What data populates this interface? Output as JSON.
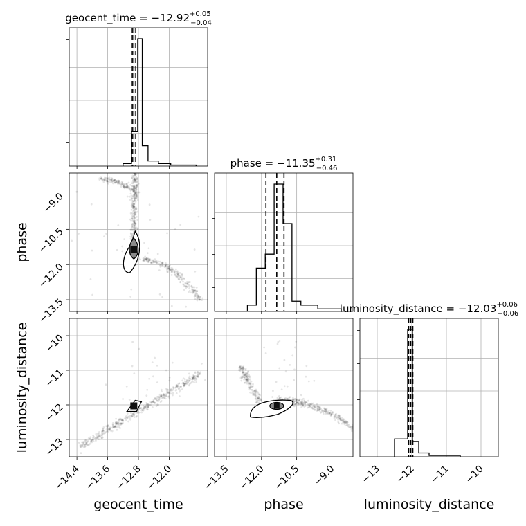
{
  "chart_data": {
    "type": "corner",
    "parameters": [
      "geocent_time",
      "phase",
      "luminosity_distance"
    ],
    "titles": [
      {
        "param": "geocent_time",
        "median": "−12.92",
        "plus": "+0.05",
        "minus": "−0.04"
      },
      {
        "param": "phase",
        "median": "−11.35",
        "plus": "+0.31",
        "minus": "−0.46"
      },
      {
        "param": "luminosity_distance",
        "median": "−12.03",
        "plus": "+0.06",
        "minus": "−0.06"
      }
    ],
    "axes": {
      "geocent_time": {
        "range": [
          -14.6,
          -11.0
        ],
        "ticks": [
          -14.4,
          -13.6,
          -12.8,
          -12.0
        ],
        "tick_labels": [
          "−14.4",
          "−13.6",
          "−12.8",
          "−12.0"
        ]
      },
      "phase": {
        "range": [
          -14.0,
          -8.1
        ],
        "ticks": [
          -13.5,
          -12.0,
          -10.5,
          -9.0
        ],
        "tick_labels": [
          "−13.5",
          "−12.0",
          "−10.5",
          "−9.0"
        ]
      },
      "luminosity_distance": {
        "range": [
          -13.5,
          -9.5
        ],
        "ticks": [
          -13,
          -12,
          -11,
          -10
        ],
        "tick_labels": [
          "−13",
          "−12",
          "−11",
          "−10"
        ]
      }
    },
    "quantiles": {
      "geocent_time": [
        -12.96,
        -12.92,
        -12.87
      ],
      "phase": [
        -11.81,
        -11.35,
        -11.04
      ],
      "luminosity_distance": [
        -12.09,
        -12.03,
        -11.97
      ]
    },
    "histograms": {
      "geocent_time": {
        "edges": [
          -13.2,
          -12.98,
          -12.82,
          -12.7,
          -12.55,
          -12.28,
          -11.96,
          -11.3
        ],
        "heights": [
          0.02,
          0.27,
          1.0,
          0.16,
          0.04,
          0.02,
          0.008
        ]
      },
      "phase": {
        "edges": [
          -12.6,
          -12.22,
          -11.84,
          -11.46,
          -11.08,
          -10.7,
          -10.32,
          -9.6,
          -8.6
        ],
        "heights": [
          0.05,
          0.34,
          0.45,
          1.0,
          0.69,
          0.08,
          0.05,
          0.02
        ]
      },
      "luminosity_distance": {
        "edges": [
          -12.5,
          -12.12,
          -11.98,
          -11.8,
          -11.5,
          -10.6
        ],
        "heights": [
          0.14,
          1.0,
          0.12,
          0.03,
          0.01
        ]
      }
    },
    "grid": true,
    "medians_marked": true,
    "xlabels": [
      "geocent_time",
      "phase",
      "luminosity_distance"
    ],
    "ylabels": [
      "phase",
      "luminosity_distance"
    ]
  }
}
